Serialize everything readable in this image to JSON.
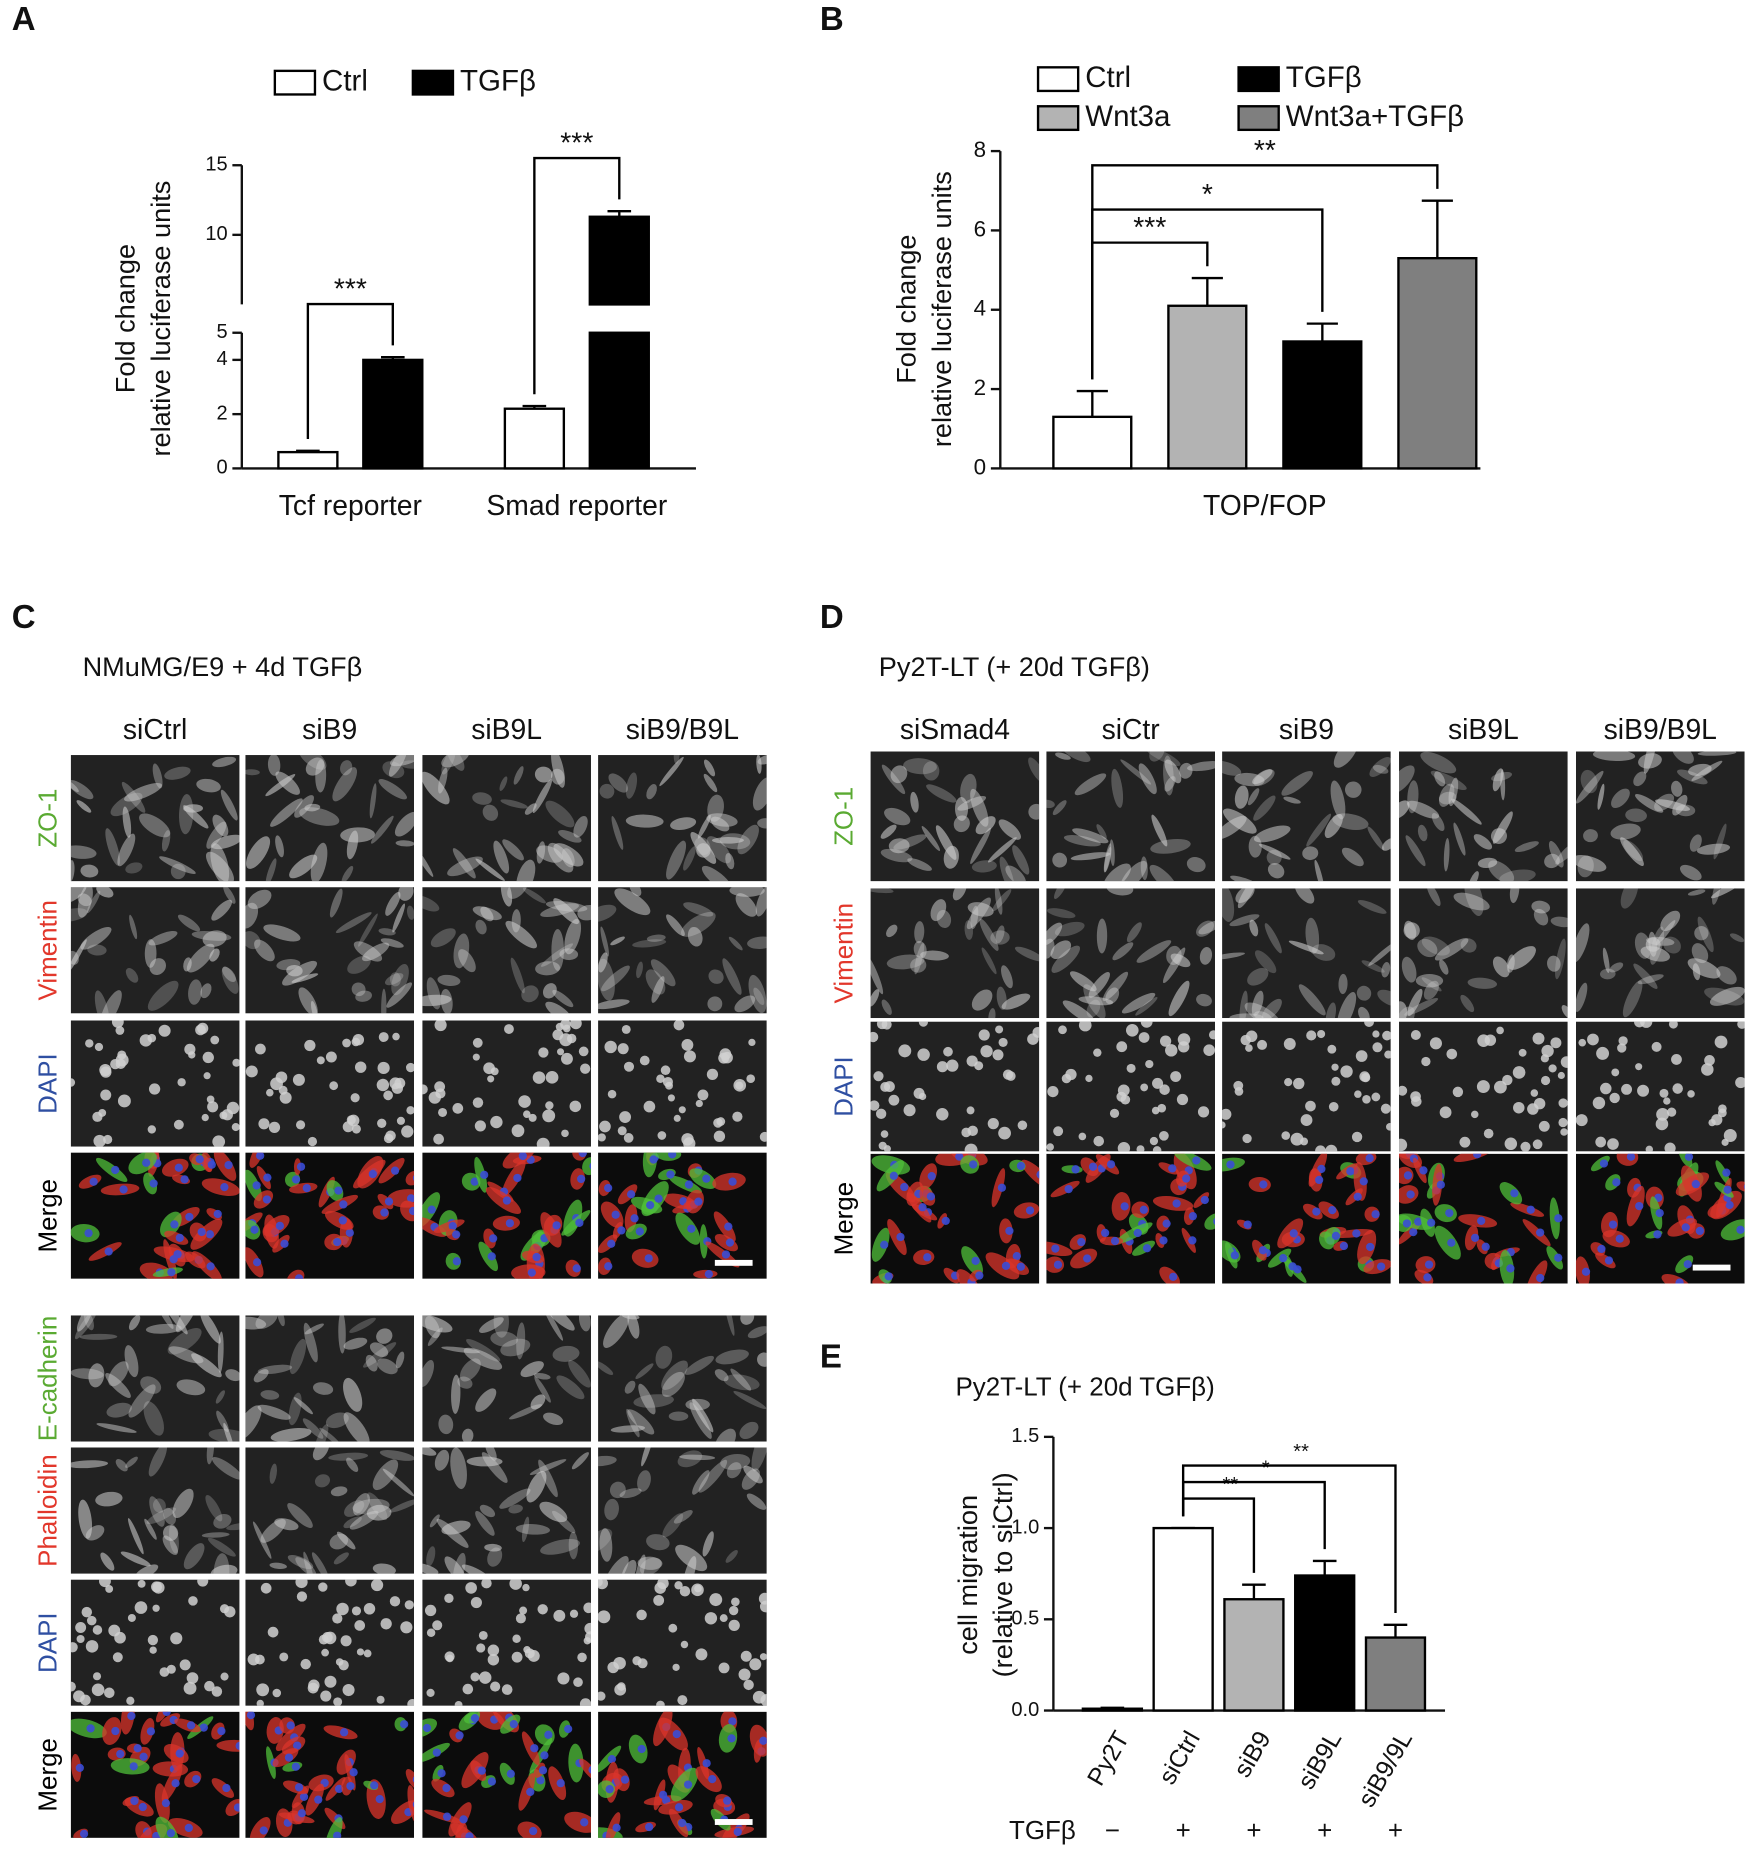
{
  "chart_data": [
    {
      "type": "bar",
      "panel": "A",
      "y_title": [
        "Fold change",
        "relative luciferase units"
      ],
      "categories": [
        "Tcf reporter",
        "Smad reporter"
      ],
      "series": [
        {
          "name": "Ctrl",
          "color": "#ffffff",
          "values": [
            0.6,
            2.2
          ],
          "errors": [
            0.05,
            0.1
          ]
        },
        {
          "name": "TGFβ",
          "color": "#000000",
          "values": [
            4.0,
            11.3
          ],
          "errors": [
            0.1,
            0.4
          ]
        }
      ],
      "ylim": [
        0,
        15
      ],
      "y_break": 5,
      "yticks": [
        0,
        2,
        4,
        5,
        10,
        15
      ],
      "annotations": [
        {
          "text": "***",
          "category": 0,
          "from": 0,
          "to": 1
        },
        {
          "text": "***",
          "category": 1,
          "from": 0,
          "to": 1
        }
      ]
    },
    {
      "type": "bar",
      "panel": "B",
      "y_title": [
        "Fold change",
        "relative luciferase units"
      ],
      "categories": [
        "TOP/FOP"
      ],
      "series": [
        {
          "name": "Ctrl",
          "color": "#ffffff",
          "values": [
            1.3
          ],
          "errors": [
            0.65
          ]
        },
        {
          "name": "Wnt3a",
          "color": "#b3b3b3",
          "values": [
            4.1
          ],
          "errors": [
            0.7
          ]
        },
        {
          "name": "TGFβ",
          "color": "#000000",
          "values": [
            3.2
          ],
          "errors": [
            0.45
          ]
        },
        {
          "name": "Wnt3a+TGFβ",
          "color": "#7f7f7f",
          "values": [
            5.3
          ],
          "errors": [
            1.45
          ]
        }
      ],
      "ylim": [
        0,
        8
      ],
      "yticks": [
        0,
        2,
        4,
        6,
        8
      ],
      "annotations": [
        {
          "text": "***",
          "category": 0,
          "from": 0,
          "to": 1
        },
        {
          "text": "*",
          "category": 0,
          "from": 0,
          "to": 2
        },
        {
          "text": "**",
          "category": 0,
          "from": 0,
          "to": 3
        }
      ]
    },
    {
      "type": "bar",
      "panel": "E",
      "title": "Py2T-LT (+ 20d TGFβ)",
      "y_title": [
        "cell migration",
        "(relative to siCtrl)"
      ],
      "categories": [
        "Py2T",
        "siCtrl",
        "siB9",
        "siB9L",
        "siB9/9L"
      ],
      "values": [
        0.01,
        1.0,
        0.61,
        0.74,
        0.4
      ],
      "errors": [
        0.005,
        0,
        0.08,
        0.08,
        0.07
      ],
      "colors": [
        "#ffffff",
        "#ffffff",
        "#b3b3b3",
        "#000000",
        "#7f7f7f"
      ],
      "ylim": [
        0,
        1.5
      ],
      "yticks": [
        {
          "value": 0,
          "label": "0.0"
        },
        0.5,
        {
          "value": 1,
          "label": "1.0"
        },
        1.5
      ],
      "annotations": [
        {
          "text": "**",
          "from": 1,
          "to": 2
        },
        {
          "text": "*",
          "from": 1,
          "to": 3
        },
        {
          "text": "**",
          "from": 1,
          "to": 4
        }
      ],
      "treatment": {
        "label": "TGFβ",
        "values": [
          "−",
          "+",
          "+",
          "+",
          "+"
        ]
      }
    }
  ],
  "image_panels": [
    {
      "panel": "C",
      "title": "NMuMG/E9 + 4d TGFβ",
      "columns": [
        "siCtrl",
        "siB9",
        "siB9L",
        "siB9/B9L"
      ],
      "row_blocks": [
        [
          {
            "label": "ZO-1",
            "color": "#5aaa32"
          },
          {
            "label": "Vimentin",
            "color": "#e2372b"
          },
          {
            "label": "DAPI",
            "color": "#2f4fa2"
          },
          {
            "label": "Merge",
            "color": "#000000"
          }
        ],
        [
          {
            "label": "E-cadherin",
            "color": "#5aaa32"
          },
          {
            "label": "Phalloidin",
            "color": "#e2372b"
          },
          {
            "label": "DAPI",
            "color": "#2f4fa2"
          },
          {
            "label": "Merge",
            "color": "#000000"
          }
        ]
      ]
    },
    {
      "panel": "D",
      "title": "Py2T-LT (+ 20d TGFβ)",
      "columns": [
        "siSmad4",
        "siCtr",
        "siB9",
        "siB9L",
        "siB9/B9L"
      ],
      "row_blocks": [
        [
          {
            "label": "ZO-1",
            "color": "#5aaa32"
          },
          {
            "label": "Vimentin",
            "color": "#e2372b"
          },
          {
            "label": "DAPI",
            "color": "#2f4fa2"
          },
          {
            "label": "Merge",
            "color": "#000000"
          }
        ]
      ]
    }
  ]
}
